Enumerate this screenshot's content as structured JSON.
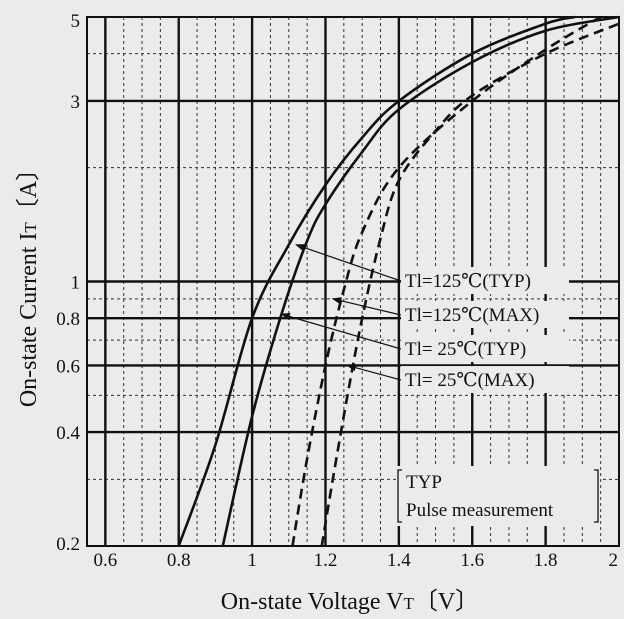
{
  "chart_data": {
    "type": "line",
    "title": "",
    "xlabel": "On-state Voltage  V",
    "xlabel_sub": "T",
    "xlabel_unit": "〔V〕",
    "ylabel": "On-state Current  I",
    "ylabel_sub": "T",
    "ylabel_unit": "〔A〕",
    "xlim": [
      0.55,
      2.0
    ],
    "ylim": [
      0.2,
      5
    ],
    "yscale": "log",
    "grid": true,
    "x_ticks": [
      "0.6",
      "0.8",
      "1",
      "1.2",
      "1.4",
      "1.6",
      "1.8",
      "2"
    ],
    "x_tick_values": [
      0.6,
      0.8,
      1.0,
      1.2,
      1.4,
      1.6,
      1.8,
      2.0
    ],
    "y_ticks": [
      "0.2",
      "0.4",
      "0.6",
      "0.8",
      "1",
      "3",
      "5"
    ],
    "y_tick_values": [
      0.2,
      0.4,
      0.6,
      0.8,
      1,
      3,
      5
    ],
    "series": [
      {
        "name": "Tl=125℃(TYP)",
        "style": "solid",
        "x": [
          0.8,
          0.9,
          1.0,
          1.1,
          1.2,
          1.3,
          1.4,
          1.6,
          1.8,
          1.88
        ],
        "y": [
          0.2,
          0.37,
          0.8,
          1.25,
          1.8,
          2.4,
          3.0,
          4.0,
          4.8,
          5.0
        ]
      },
      {
        "name": "Tl=125℃(MAX)",
        "style": "dashed",
        "x": [
          1.11,
          1.15,
          1.2,
          1.25,
          1.3,
          1.4,
          1.6,
          1.8,
          1.95
        ],
        "y": [
          0.2,
          0.34,
          0.6,
          0.95,
          1.35,
          2.0,
          3.0,
          4.1,
          5.0
        ]
      },
      {
        "name": "Tl= 25℃(TYP)",
        "style": "solid",
        "x": [
          0.92,
          1.0,
          1.08,
          1.15,
          1.2,
          1.3,
          1.4,
          1.6,
          1.8,
          2.0
        ],
        "y": [
          0.2,
          0.44,
          0.82,
          1.28,
          1.6,
          2.2,
          2.85,
          3.8,
          4.6,
          5.0
        ]
      },
      {
        "name": "Tl= 25℃(MAX)",
        "style": "dashed",
        "x": [
          1.19,
          1.22,
          1.26,
          1.3,
          1.35,
          1.4,
          1.5,
          1.6,
          1.8,
          2.0
        ],
        "y": [
          0.2,
          0.3,
          0.5,
          0.8,
          1.3,
          1.85,
          2.5,
          3.1,
          4.0,
          4.8
        ]
      }
    ],
    "annotation": {
      "line1": "TYP",
      "line2": "Pulse measurement"
    }
  }
}
